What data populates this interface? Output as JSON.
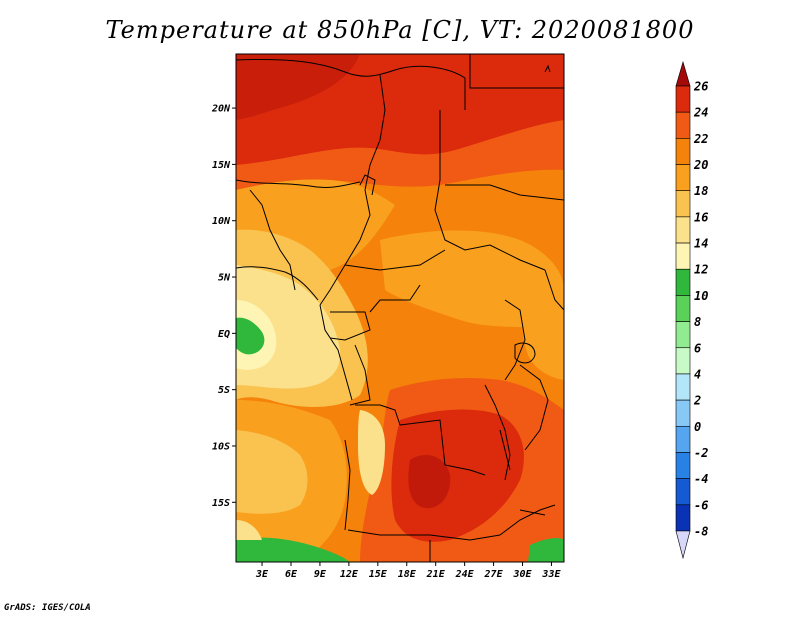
{
  "title": "Temperature at 850hPa [C], VT: 2020081800",
  "footer": "GrADS: IGES/COLA",
  "map": {
    "region": "Central Africa",
    "lat_range": [
      -20.3,
      24.8
    ],
    "lon_range": [
      0.3,
      34.3
    ],
    "lat_ticks": [
      "20N",
      "15N",
      "10N",
      "5N",
      "EQ",
      "5S",
      "10S",
      "15S"
    ],
    "lon_ticks": [
      "3E",
      "6E",
      "9E",
      "12E",
      "15E",
      "18E",
      "21E",
      "24E",
      "27E",
      "30E",
      "33E"
    ]
  },
  "colorbar": {
    "levels": [
      "26",
      "24",
      "22",
      "20",
      "18",
      "16",
      "14",
      "12",
      "10",
      "8",
      "6",
      "4",
      "2",
      "0",
      "-2",
      "-4",
      "-6",
      "-8"
    ],
    "colors": [
      "#a50a0a",
      "#dc2a0c",
      "#f05a14",
      "#f5820a",
      "#f9a01e",
      "#fac350",
      "#fbe18c",
      "#fef5b4",
      "#2fb83c",
      "#5ad25a",
      "#91eb91",
      "#c8fac8",
      "#b4e6fa",
      "#87c8f5",
      "#55a5f0",
      "#2882e6",
      "#145ad2",
      "#0a32b4",
      "#0a148c",
      "#d7d7fa"
    ]
  }
}
